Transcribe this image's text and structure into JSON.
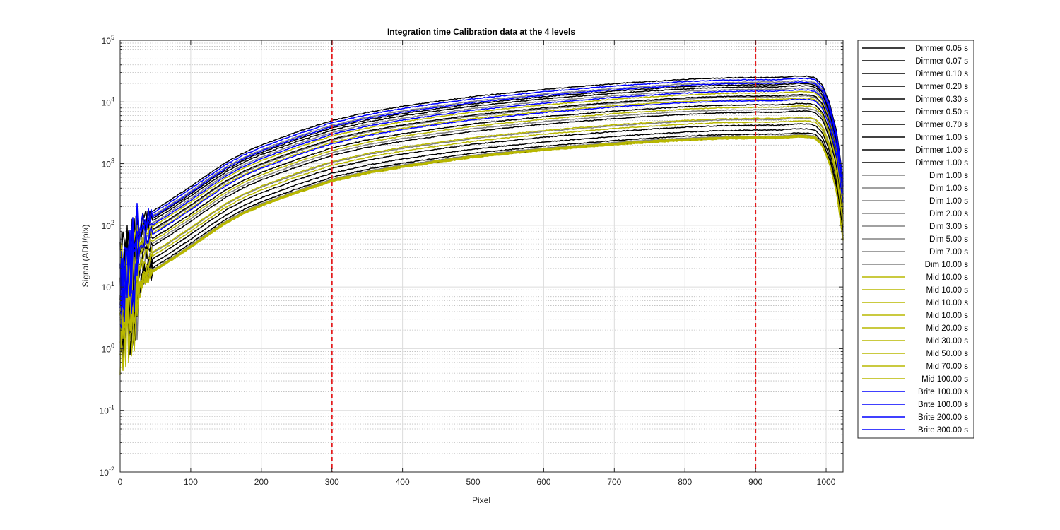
{
  "chart_data": {
    "type": "line",
    "title": "Integration time Calibration data at the 4 levels",
    "xlabel": "Pixel",
    "ylabel": "Signal (ADU/pix)",
    "xlim": [
      0,
      1024
    ],
    "ylim": [
      0.01,
      100000
    ],
    "yscale": "log",
    "grid": true,
    "minor_grid": true,
    "legend_position": "outside-right",
    "x_ticks": [
      0,
      100,
      200,
      300,
      400,
      500,
      600,
      700,
      800,
      900,
      1000
    ],
    "x_tick_labels": [
      "0",
      "100",
      "200",
      "300",
      "400",
      "500",
      "600",
      "700",
      "800",
      "900",
      "1000"
    ],
    "y_ticks": [
      0.01,
      0.1,
      1,
      10,
      100,
      1000,
      10000,
      100000
    ],
    "y_tick_labels": [
      {
        "base": "10",
        "exp": "-2"
      },
      {
        "base": "10",
        "exp": "-1"
      },
      {
        "base": "10",
        "exp": "0"
      },
      {
        "base": "10",
        "exp": "1"
      },
      {
        "base": "10",
        "exp": "2"
      },
      {
        "base": "10",
        "exp": "3"
      },
      {
        "base": "10",
        "exp": "4"
      },
      {
        "base": "10",
        "exp": "5"
      }
    ],
    "reference_lines": [
      {
        "x": 300,
        "color": "#e41a1c",
        "style": "dashed"
      },
      {
        "x": 900,
        "color": "#e41a1c",
        "style": "dashed"
      }
    ],
    "profile_note_x": [
      0,
      10,
      20,
      30,
      40,
      60,
      80,
      100,
      125,
      150,
      175,
      200,
      250,
      300,
      350,
      400,
      450,
      500,
      550,
      600,
      650,
      700,
      750,
      800,
      850,
      900,
      930,
      960,
      975,
      985,
      995,
      1005,
      1015,
      1024
    ],
    "series": [
      {
        "name": "Dimmer 0.05 s",
        "color": "#000000",
        "value_at_900": 2600
      },
      {
        "name": "Dimmer 0.07 s",
        "color": "#000000",
        "value_at_900": 3000
      },
      {
        "name": "Dimmer 0.10 s",
        "color": "#000000",
        "value_at_900": 3500
      },
      {
        "name": "Dimmer 0.20 s",
        "color": "#000000",
        "value_at_900": 4200
      },
      {
        "name": "Dimmer 0.30 s",
        "color": "#000000",
        "value_at_900": 6800
      },
      {
        "name": "Dimmer 0.50 s",
        "color": "#000000",
        "value_at_900": 9000
      },
      {
        "name": "Dimmer 0.70 s",
        "color": "#000000",
        "value_at_900": 12500
      },
      {
        "name": "Dimmer 1.00 s",
        "color": "#000000",
        "value_at_900": 17500
      },
      {
        "name": "Dimmer 1.00 s",
        "color": "#000000",
        "value_at_900": 19000
      },
      {
        "name": "Dimmer 1.00 s",
        "color": "#000000",
        "value_at_900": 25000
      },
      {
        "name": "Dim 1.00 s",
        "color": "#808080",
        "value_at_900": 2700
      },
      {
        "name": "Dim 1.00 s",
        "color": "#808080",
        "value_at_900": 2750
      },
      {
        "name": "Dim 1.00 s",
        "color": "#808080",
        "value_at_900": 2800
      },
      {
        "name": "Dim 2.00 s",
        "color": "#808080",
        "value_at_900": 5200
      },
      {
        "name": "Dim 3.00 s",
        "color": "#808080",
        "value_at_900": 7500
      },
      {
        "name": "Dim 5.00 s",
        "color": "#808080",
        "value_at_900": 12000
      },
      {
        "name": "Dim 7.00 s",
        "color": "#808080",
        "value_at_900": 16000
      },
      {
        "name": "Dim 10.00 s",
        "color": "#808080",
        "value_at_900": 21000
      },
      {
        "name": "Mid 10.00 s",
        "color": "#b8b800",
        "value_at_900": 2550
      },
      {
        "name": "Mid 10.00 s",
        "color": "#b8b800",
        "value_at_900": 2620
      },
      {
        "name": "Mid 10.00 s",
        "color": "#b8b800",
        "value_at_900": 2680
      },
      {
        "name": "Mid 10.00 s",
        "color": "#b8b800",
        "value_at_900": 2720
      },
      {
        "name": "Mid 20.00 s",
        "color": "#b8b800",
        "value_at_900": 4700
      },
      {
        "name": "Mid 30.00 s",
        "color": "#b8b800",
        "value_at_900": 5400
      },
      {
        "name": "Mid 50.00 s",
        "color": "#b8b800",
        "value_at_900": 8200
      },
      {
        "name": "Mid 70.00 s",
        "color": "#b8b800",
        "value_at_900": 11000
      },
      {
        "name": "Mid 100.00 s",
        "color": "#b8b800",
        "value_at_900": 14000
      },
      {
        "name": "Brite 100.00 s",
        "color": "#0000ff",
        "value_at_900": 10500
      },
      {
        "name": "Brite 100.00 s",
        "color": "#0000ff",
        "value_at_900": 15000
      },
      {
        "name": "Brite 200.00 s",
        "color": "#0000ff",
        "value_at_900": 20000
      },
      {
        "name": "Brite 300.00 s",
        "color": "#0000ff",
        "value_at_900": 23000
      }
    ]
  }
}
